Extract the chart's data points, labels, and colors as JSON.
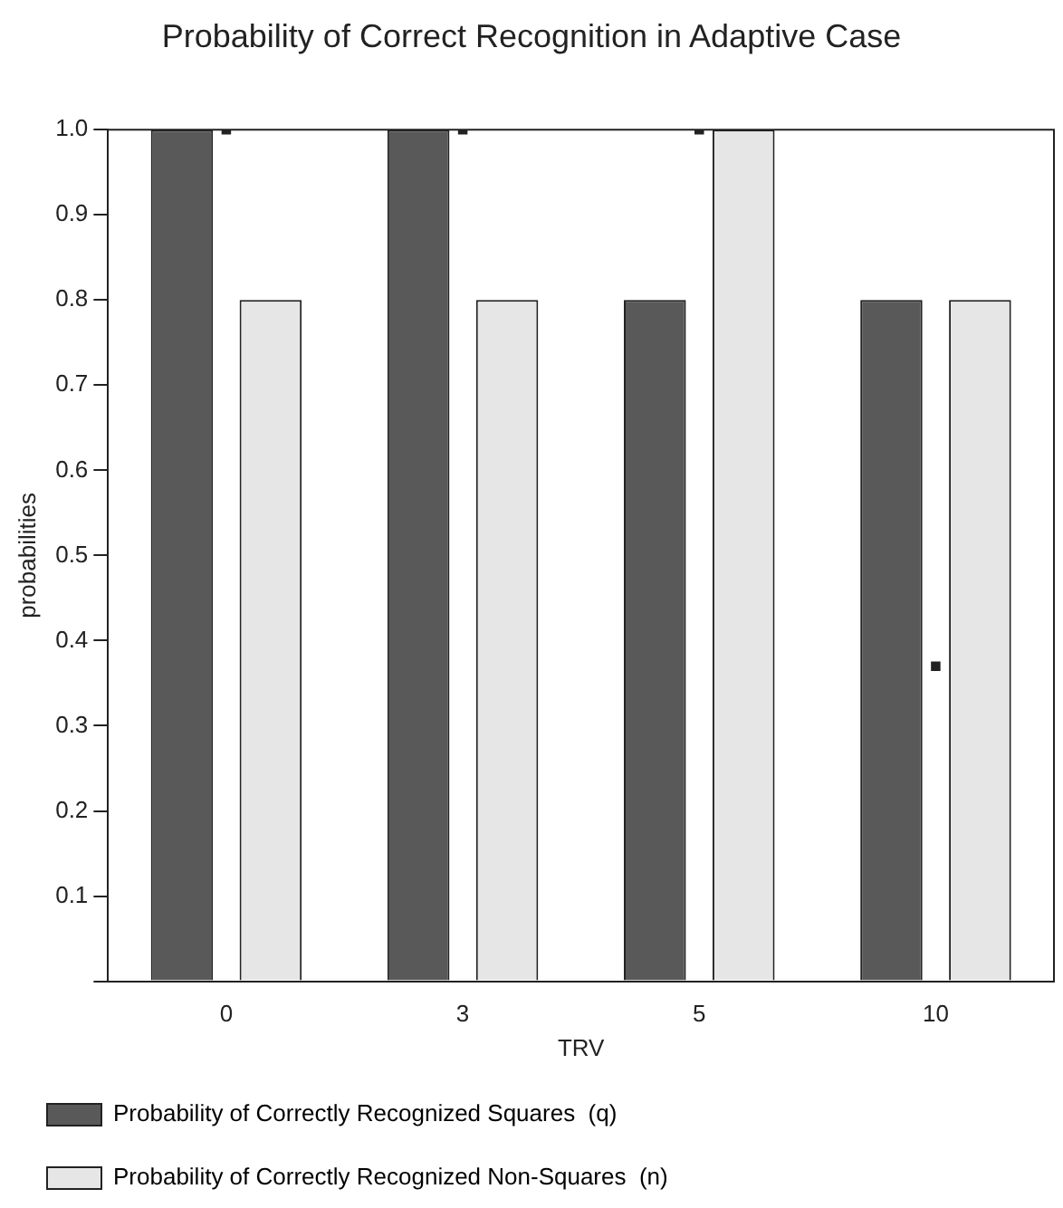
{
  "chart_data": {
    "type": "bar",
    "title": "Probability of Correct Recognition in Adaptive Case",
    "xlabel": "TRV",
    "ylabel": "probabilities",
    "categories": [
      "0",
      "3",
      "5",
      "10"
    ],
    "series": [
      {
        "name": "Probability of Correctly Recognized Squares  (q)",
        "color": "#595959",
        "values": [
          1.0,
          1.0,
          0.8,
          0.8
        ]
      },
      {
        "name": "Probability of Correctly Recognized Non-Squares  (n)",
        "color": "#e6e6e6",
        "values": [
          0.8,
          0.8,
          1.0,
          0.8
        ]
      },
      {
        "type": "scatter",
        "color": "#222222",
        "x": [
          "0",
          "3",
          "5",
          "10"
        ],
        "values": [
          1.0,
          1.0,
          1.0,
          0.37
        ]
      }
    ],
    "marker": "square",
    "ylim": [
      0,
      1
    ],
    "yticks": [
      {
        "value": 0,
        "label": null
      },
      0.1,
      0.2,
      0.3,
      0.4,
      0.5,
      0.6,
      0.7,
      0.8,
      0.9,
      {
        "value": 1,
        "label": "1.0"
      }
    ],
    "grid": false,
    "legend": "bottom"
  }
}
